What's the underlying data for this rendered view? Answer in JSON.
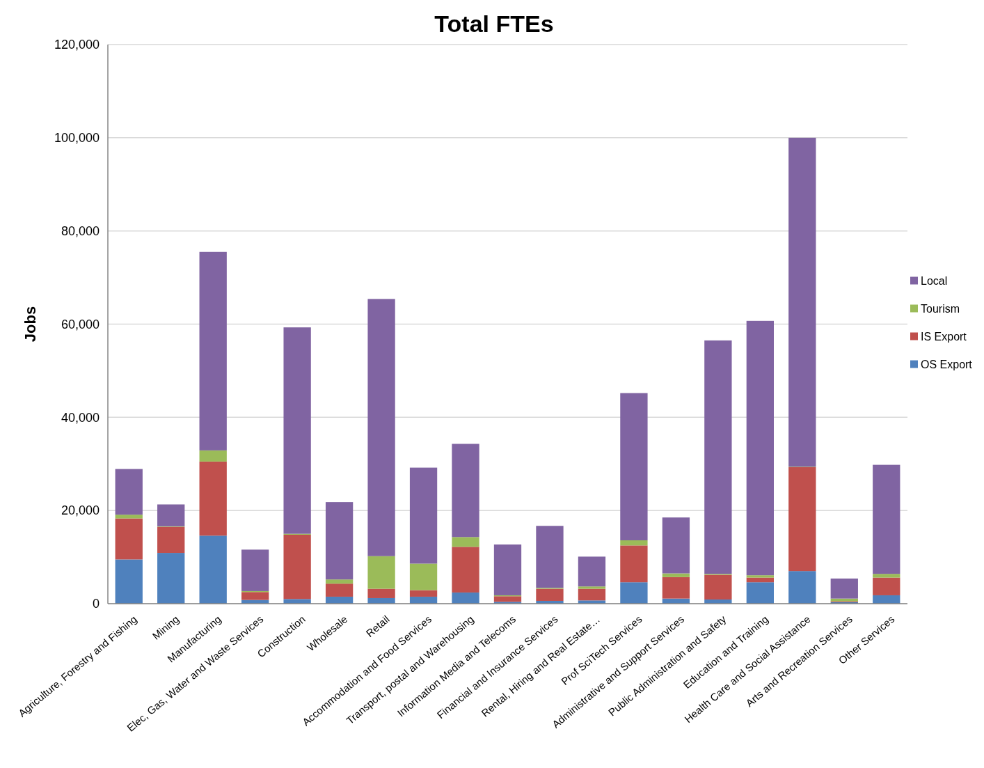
{
  "chart_data": {
    "type": "bar",
    "title": "Total FTEs",
    "ylabel": "Jobs",
    "stacked": true,
    "grid": "y",
    "legend": "right",
    "categories": [
      "Agriculture, Forestry and Fishing",
      "Mining",
      "Manufacturing",
      "Elec, Gas, Water and Waste Services",
      "Construction",
      "Wholesale",
      "Retail",
      "Accommodation and Food Services",
      "Transport, postal and Warehousing",
      "Information Media and Telecoms",
      "Financial and Insurance Services",
      "Rental, Hiring and Real Estate…",
      "Prof SciTech Services",
      "Administrative and Support Services",
      "Public Administration and Safety",
      "Education and Training",
      "Health Care and Social Assistance",
      "Arts and Recreation Services",
      "Other Services"
    ],
    "ylim": [
      0,
      120000
    ],
    "yticks": [
      {
        "value": 0,
        "label": "0"
      },
      {
        "value": 20000,
        "label": "20,000"
      },
      {
        "value": 40000,
        "label": "40,000"
      },
      {
        "value": 60000,
        "label": "60,000"
      },
      {
        "value": 80000,
        "label": "80,000"
      },
      {
        "value": 100000,
        "label": "100,000"
      },
      {
        "value": 120000,
        "label": "120,000"
      }
    ],
    "series": [
      {
        "name": "OS Export",
        "color": "#4f81bd",
        "values": [
          9500,
          10900,
          14600,
          800,
          1000,
          1500,
          1200,
          1500,
          2400,
          400,
          600,
          700,
          4600,
          1100,
          900,
          4600,
          7000,
          300,
          1800
        ]
      },
      {
        "name": "IS Export",
        "color": "#c0504d",
        "values": [
          8800,
          5600,
          15900,
          1700,
          13800,
          2800,
          2000,
          1400,
          9800,
          1200,
          2600,
          2500,
          7900,
          4600,
          5300,
          1000,
          22300,
          200,
          3800
        ]
      },
      {
        "name": "Tourism",
        "color": "#9bbb59",
        "values": [
          800,
          100,
          2400,
          200,
          200,
          900,
          7000,
          5700,
          2100,
          200,
          200,
          500,
          1100,
          800,
          200,
          500,
          100,
          600,
          800
        ]
      },
      {
        "name": "Local",
        "color": "#8064a2",
        "values": [
          9800,
          4700,
          42600,
          8900,
          44300,
          16600,
          55200,
          20600,
          20000,
          10900,
          13300,
          6400,
          31600,
          12000,
          50100,
          54600,
          70600,
          4300,
          23400
        ]
      }
    ]
  }
}
